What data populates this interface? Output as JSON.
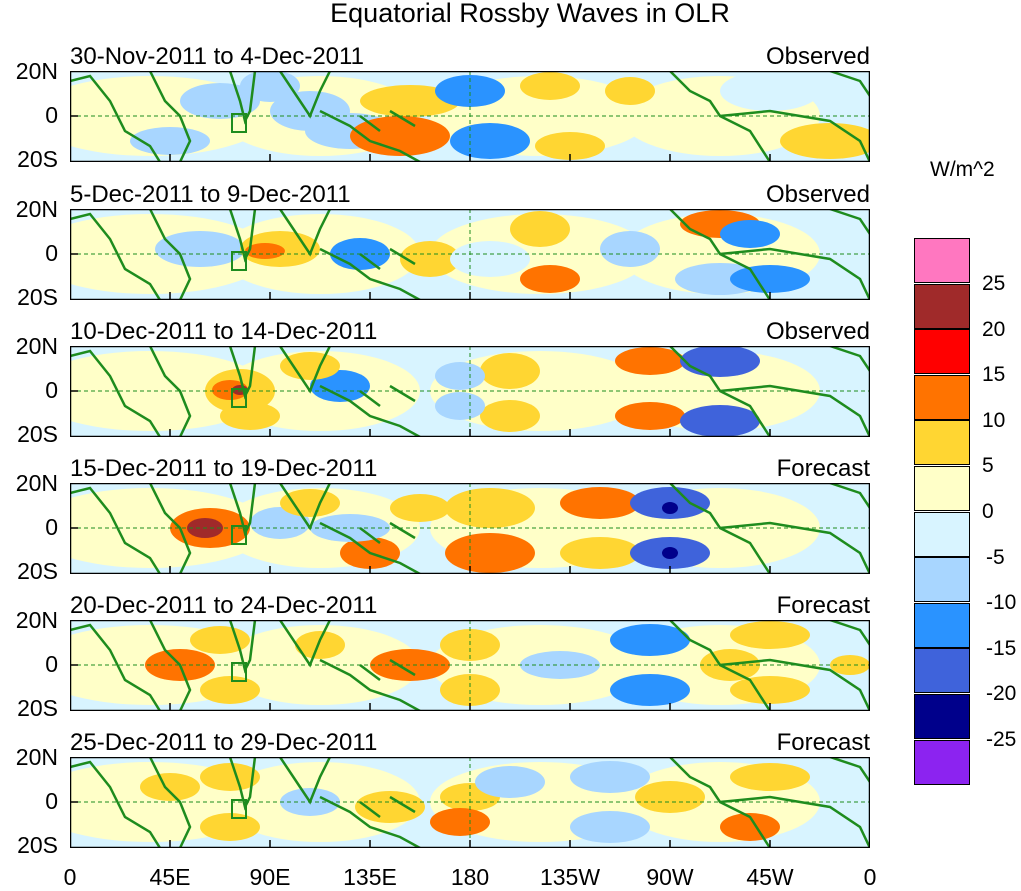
{
  "title": "Equatorial Rossby Waves in OLR",
  "lat_labels": [
    "20N",
    "0",
    "20S"
  ],
  "lon_labels": [
    "0",
    "45E",
    "90E",
    "135E",
    "180",
    "135W",
    "90W",
    "45W",
    "0"
  ],
  "panels": [
    {
      "date_range": "30-Nov-2011 to 4-Dec-2011",
      "type": "Observed"
    },
    {
      "date_range": "5-Dec-2011 to 9-Dec-2011",
      "type": "Observed"
    },
    {
      "date_range": "10-Dec-2011 to 14-Dec-2011",
      "type": "Observed"
    },
    {
      "date_range": "15-Dec-2011 to 19-Dec-2011",
      "type": "Forecast"
    },
    {
      "date_range": "20-Dec-2011 to 24-Dec-2011",
      "type": "Forecast"
    },
    {
      "date_range": "25-Dec-2011 to 29-Dec-2011",
      "type": "Forecast"
    }
  ],
  "colorbar": {
    "unit": "W/m^2",
    "labels": [
      "25",
      "20",
      "15",
      "10",
      "5",
      "0",
      "-5",
      "-10",
      "-15",
      "-20",
      "-25"
    ],
    "colors": [
      "#ff77c0",
      "#a02a2a",
      "#ff0000",
      "#ff7300",
      "#ffd632",
      "#ffffc8",
      "#d8f4ff",
      "#a8d6ff",
      "#2a93ff",
      "#3f63db",
      "#00008b",
      "#8c23f0"
    ]
  },
  "colors": {
    "coast": "#1e8c1e",
    "frame": "#000000"
  }
}
